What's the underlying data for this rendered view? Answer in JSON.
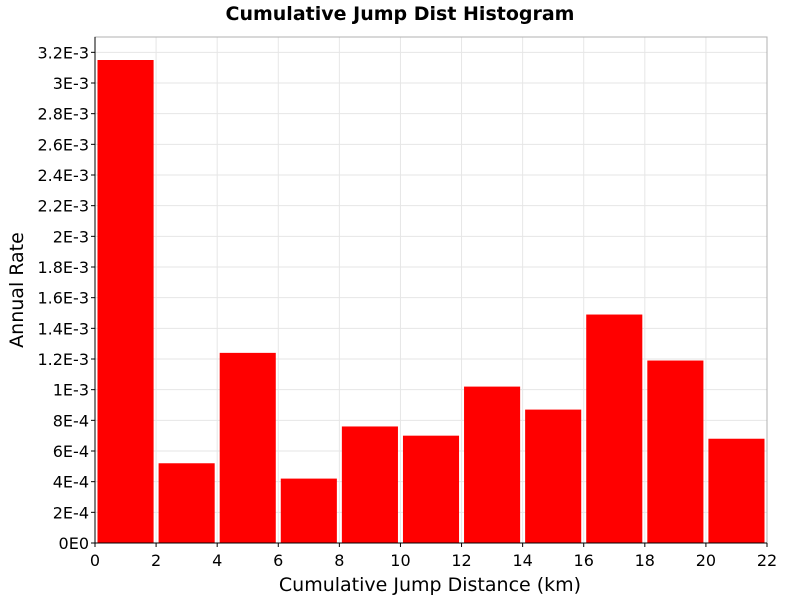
{
  "chart_data": {
    "type": "bar",
    "title": "Cumulative Jump Dist Histogram",
    "xlabel": "Cumulative Jump Distance (km)",
    "ylabel": "Annual Rate",
    "xlim": [
      0,
      22
    ],
    "ylim": [
      0,
      0.0033
    ],
    "x_ticks": [
      0,
      2,
      4,
      6,
      8,
      10,
      12,
      14,
      16,
      18,
      20,
      22
    ],
    "x_tick_labels": [
      "0",
      "2",
      "4",
      "6",
      "8",
      "10",
      "12",
      "14",
      "16",
      "18",
      "20",
      "22"
    ],
    "y_ticks": [
      0,
      0.0002,
      0.0004,
      0.0006,
      0.0008,
      0.001,
      0.0012,
      0.0014,
      0.0016,
      0.0018,
      0.002,
      0.0022,
      0.0024,
      0.0026,
      0.0028,
      0.003,
      0.0032
    ],
    "y_tick_labels": [
      "0E0",
      "2E-4",
      "4E-4",
      "6E-4",
      "8E-4",
      "1E-3",
      "1.2E-3",
      "1.4E-3",
      "1.6E-3",
      "1.8E-3",
      "2E-3",
      "2.2E-3",
      "2.4E-3",
      "2.6E-3",
      "2.8E-3",
      "3E-3",
      "3.2E-3"
    ],
    "bins": [
      {
        "x_start": 0,
        "x_end": 2,
        "value": 0.00315
      },
      {
        "x_start": 2,
        "x_end": 4,
        "value": 0.00052
      },
      {
        "x_start": 4,
        "x_end": 6,
        "value": 0.00124
      },
      {
        "x_start": 6,
        "x_end": 8,
        "value": 0.00042
      },
      {
        "x_start": 8,
        "x_end": 10,
        "value": 0.00076
      },
      {
        "x_start": 10,
        "x_end": 12,
        "value": 0.0007
      },
      {
        "x_start": 12,
        "x_end": 14,
        "value": 0.00102
      },
      {
        "x_start": 14,
        "x_end": 16,
        "value": 0.00087
      },
      {
        "x_start": 16,
        "x_end": 18,
        "value": 0.00149
      },
      {
        "x_start": 18,
        "x_end": 20,
        "value": 0.00119
      },
      {
        "x_start": 20,
        "x_end": 22,
        "value": 0.00068
      }
    ],
    "bar_color": "#ff0000",
    "grid": true,
    "legend": "none"
  }
}
